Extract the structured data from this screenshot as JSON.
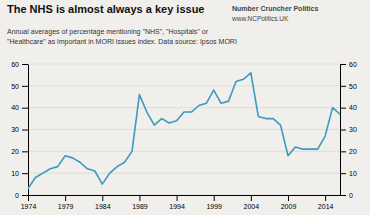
{
  "chart_data": {
    "type": "line",
    "title": "The NHS is almost always a key issue",
    "subtitle": "Annual averages of percentage mentioning \"NHS\", \"Hospitals\" or\n\"Healthcare\" as important in MORI issues index. Data source: Ipsos MORI",
    "annotations": [
      "Number Cruncher Politics",
      "www.NCPolitics.UK"
    ],
    "x": [
      1974,
      1975,
      1976,
      1977,
      1978,
      1979,
      1980,
      1981,
      1982,
      1983,
      1984,
      1985,
      1986,
      1987,
      1988,
      1989,
      1990,
      1991,
      1992,
      1993,
      1994,
      1995,
      1996,
      1997,
      1998,
      1999,
      2000,
      2001,
      2002,
      2003,
      2004,
      2005,
      2006,
      2007,
      2008,
      2009,
      2010,
      2011,
      2012,
      2013,
      2014,
      2015,
      2016
    ],
    "values": [
      3,
      8,
      10,
      12,
      13,
      18,
      17,
      15,
      12,
      11,
      5,
      10,
      13,
      15,
      20,
      46,
      38,
      32,
      35,
      33,
      34,
      38,
      38,
      41,
      42,
      48,
      42,
      43,
      52,
      53,
      56,
      36,
      35,
      35,
      32,
      18,
      22,
      21,
      21,
      21,
      27,
      40,
      37
    ],
    "color": "#3a9bbf",
    "xlim": [
      1974,
      2016
    ],
    "xticks": [
      1974,
      1979,
      1984,
      1989,
      1994,
      1999,
      2004,
      2009,
      2014
    ],
    "ylim": [
      0,
      60
    ],
    "yticks": [
      0,
      10,
      20,
      30,
      40,
      50,
      60
    ],
    "y2lim": [
      0,
      60
    ],
    "y2ticks": [
      0,
      10,
      20,
      30,
      40,
      50,
      60
    ],
    "grid": true
  }
}
